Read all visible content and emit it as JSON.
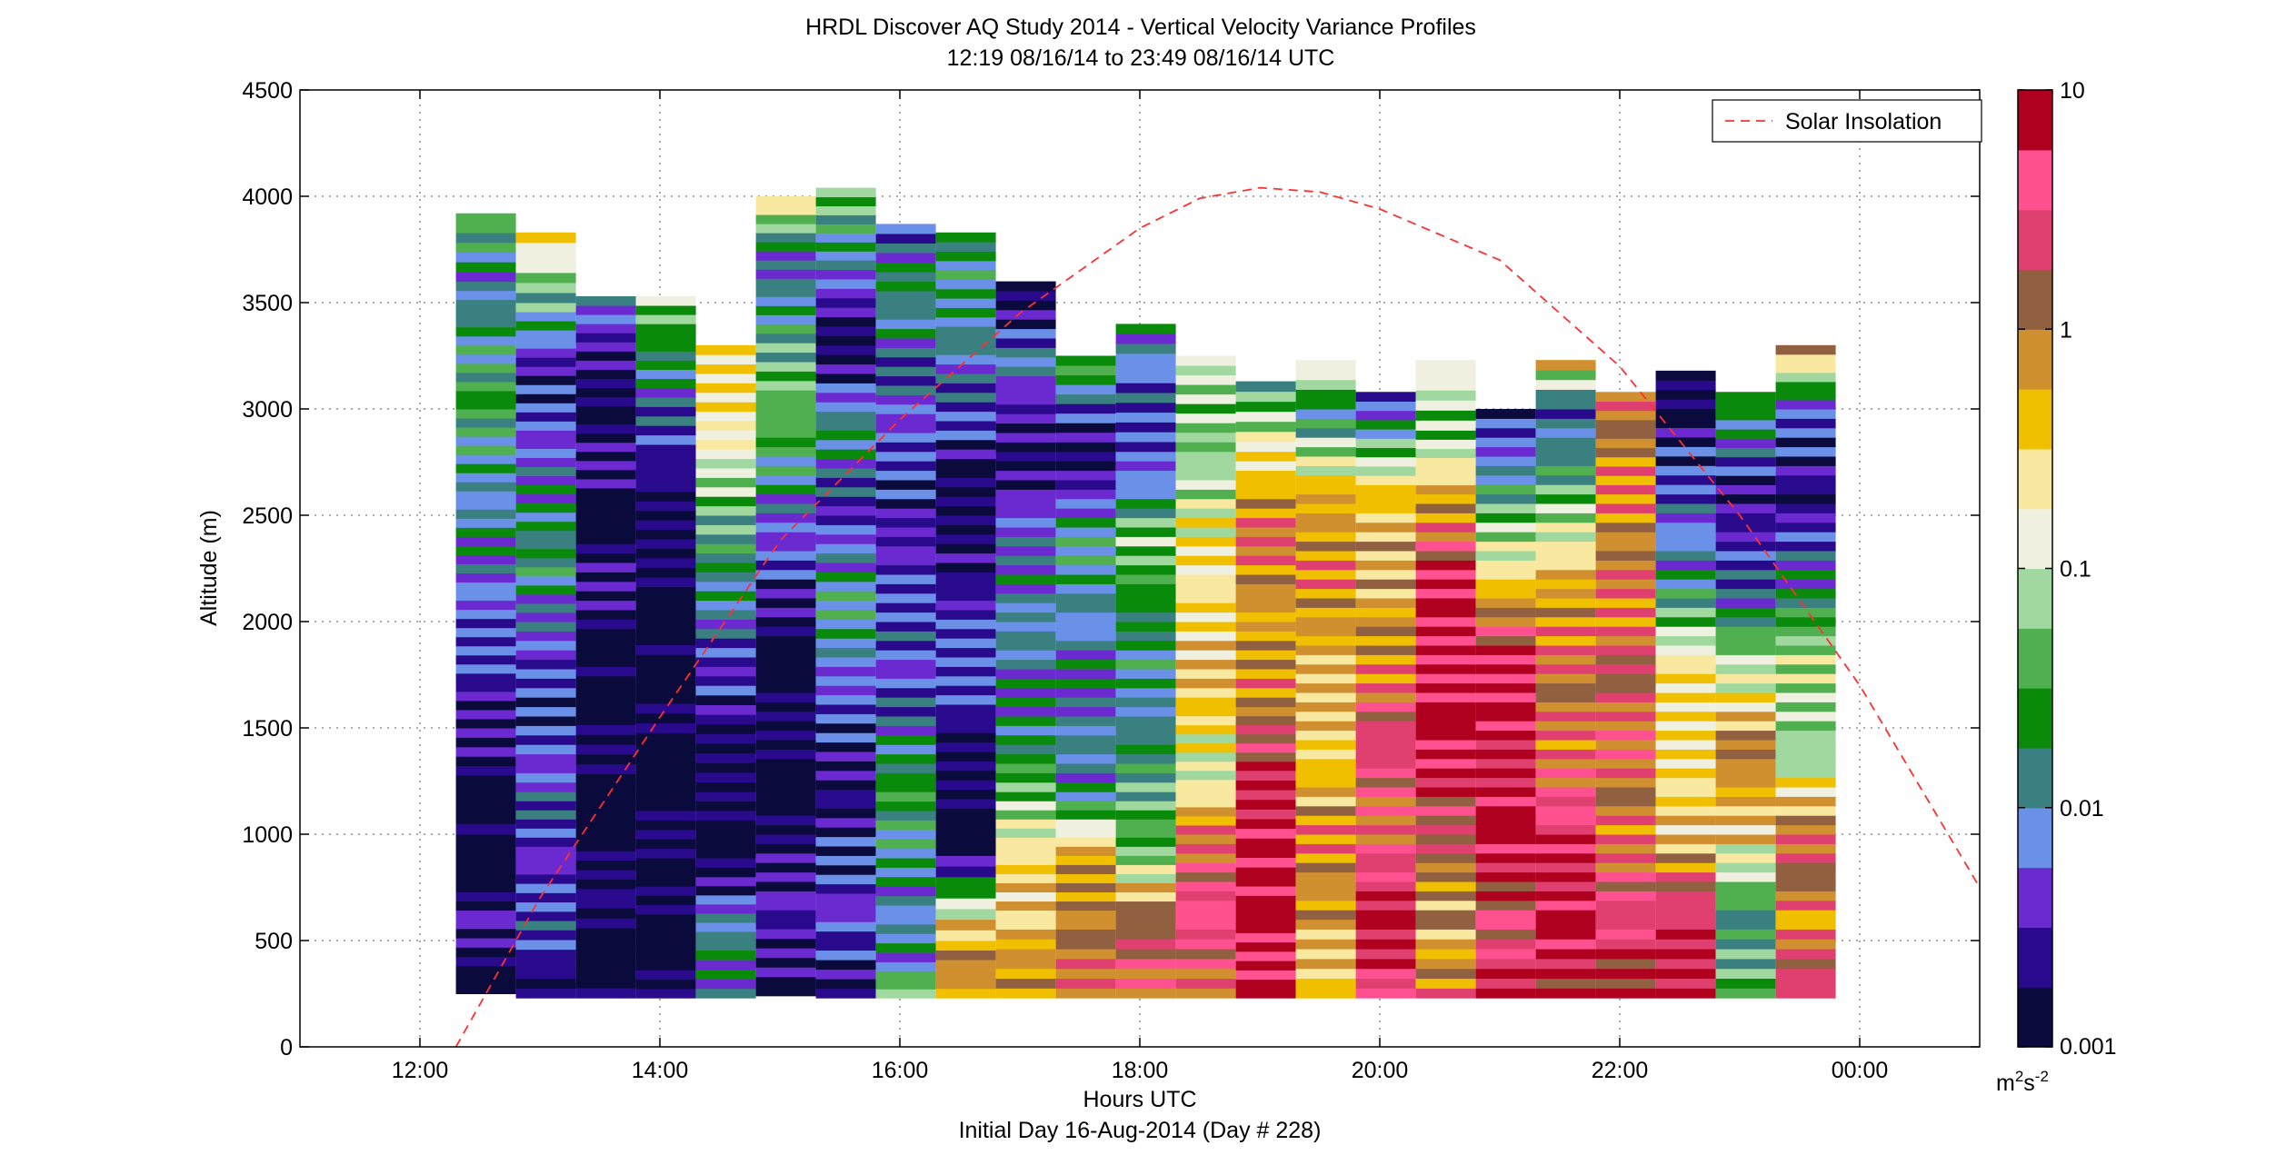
{
  "chart_data": {
    "type": "heatmap",
    "title": "HRDL Discover AQ Study 2014 - Vertical Velocity Variance Profiles",
    "subtitle": "12:19 08/16/14 to 23:49 08/16/14  UTC",
    "xlabel": "Hours UTC",
    "xlabel2": "Initial Day 16-Aug-2014 (Day # 228)",
    "ylabel": "Altitude (m)",
    "xlim": [
      11.0,
      25.0
    ],
    "ylim": [
      0,
      4500
    ],
    "x_ticks": [
      {
        "value": 12,
        "label": "12:00"
      },
      {
        "value": 14,
        "label": "14:00"
      },
      {
        "value": 16,
        "label": "16:00"
      },
      {
        "value": 18,
        "label": "18:00"
      },
      {
        "value": 20,
        "label": "20:00"
      },
      {
        "value": 22,
        "label": "22:00"
      },
      {
        "value": 24,
        "label": "00:00"
      }
    ],
    "y_ticks": [
      {
        "value": 0,
        "label": "0"
      },
      {
        "value": 500,
        "label": "500"
      },
      {
        "value": 1000,
        "label": "1000"
      },
      {
        "value": 1500,
        "label": "1500"
      },
      {
        "value": 2000,
        "label": "2000"
      },
      {
        "value": 2500,
        "label": "2500"
      },
      {
        "value": 3000,
        "label": "3000"
      },
      {
        "value": 3500,
        "label": "3500"
      },
      {
        "value": 4000,
        "label": "4000"
      },
      {
        "value": 4500,
        "label": "4500"
      }
    ],
    "grid": true,
    "colorbar": {
      "scale": "log",
      "range": [
        0.001,
        10
      ],
      "ticks": [
        {
          "value": 0.001,
          "label": "0.001"
        },
        {
          "value": 0.01,
          "label": "0.01"
        },
        {
          "value": 0.1,
          "label": "0.1"
        },
        {
          "value": 1,
          "label": "1"
        },
        {
          "value": 10,
          "label": "10"
        }
      ],
      "units": "m",
      "units_sup": "2",
      "units_s": "s",
      "units_s_sup": "-2",
      "colors": [
        "#0a0a3c",
        "#2a0a8c",
        "#6a2ad0",
        "#6a90e8",
        "#3a8080",
        "#0a8a0a",
        "#50b050",
        "#a0d8a0",
        "#f0f0e0",
        "#f8e8a0",
        "#f0c000",
        "#d09030",
        "#906040",
        "#e04070",
        "#ff5090",
        "#b00020"
      ]
    },
    "series": [
      {
        "name": "Solar Insolation",
        "type": "line",
        "style": "dashed",
        "color": "#ff3030",
        "x": [
          12.3,
          13.0,
          14.0,
          15.0,
          16.0,
          17.0,
          18.0,
          18.5,
          19.0,
          19.5,
          20.0,
          21.0,
          22.0,
          23.0,
          24.0,
          25.0
        ],
        "y": [
          0,
          700,
          1550,
          2380,
          2950,
          3450,
          3850,
          3990,
          4040,
          4020,
          3940,
          3700,
          3200,
          2500,
          1700,
          750
        ]
      }
    ],
    "profiles": [
      {
        "time": 12.55,
        "top": 3920,
        "bottom": 250,
        "layers": [
          [
            250,
            0.001
          ],
          [
            600,
            0.002
          ],
          [
            900,
            0.001
          ],
          [
            1100,
            0.001
          ],
          [
            1500,
            0.002
          ],
          [
            1800,
            0.004
          ],
          [
            2100,
            0.005
          ],
          [
            2400,
            0.012
          ],
          [
            2700,
            0.01
          ],
          [
            3000,
            0.03
          ],
          [
            3300,
            0.02
          ],
          [
            3600,
            0.008
          ],
          [
            3920,
            0.05
          ]
        ]
      },
      {
        "time": 13.05,
        "top": 3830,
        "bottom": 230,
        "layers": [
          [
            230,
            0.001
          ],
          [
            550,
            0.005
          ],
          [
            900,
            0.003
          ],
          [
            1200,
            0.006
          ],
          [
            1600,
            0.003
          ],
          [
            2000,
            0.006
          ],
          [
            2300,
            0.02
          ],
          [
            2600,
            0.01
          ],
          [
            2900,
            0.004
          ],
          [
            3200,
            0.003
          ],
          [
            3500,
            0.03
          ],
          [
            3830,
            0.3
          ]
        ]
      },
      {
        "time": 13.55,
        "top": 3530,
        "bottom": 230,
        "layers": [
          [
            230,
            0.001
          ],
          [
            700,
            0.001
          ],
          [
            1100,
            0.001
          ],
          [
            1700,
            0.001
          ],
          [
            2100,
            0.002
          ],
          [
            2500,
            0.001
          ],
          [
            2800,
            0.003
          ],
          [
            3100,
            0.001
          ],
          [
            3530,
            0.01
          ]
        ]
      },
      {
        "time": 14.05,
        "top": 3530,
        "bottom": 230,
        "layers": [
          [
            230,
            0.001
          ],
          [
            800,
            0.001
          ],
          [
            1200,
            0.001
          ],
          [
            1800,
            0.001
          ],
          [
            2300,
            0.001
          ],
          [
            2700,
            0.002
          ],
          [
            3100,
            0.01
          ],
          [
            3530,
            0.05
          ]
        ]
      },
      {
        "time": 14.55,
        "top": 3300,
        "bottom": 230,
        "layers": [
          [
            230,
            0.005
          ],
          [
            500,
            0.02
          ],
          [
            800,
            0.002
          ],
          [
            1200,
            0.001
          ],
          [
            1700,
            0.003
          ],
          [
            2100,
            0.01
          ],
          [
            2500,
            0.04
          ],
          [
            2900,
            0.2
          ],
          [
            3300,
            0.3
          ]
        ]
      },
      {
        "time": 15.05,
        "top": 4000,
        "bottom": 240,
        "layers": [
          [
            240,
            0.001
          ],
          [
            600,
            0.004
          ],
          [
            1000,
            0.001
          ],
          [
            1400,
            0.001
          ],
          [
            1800,
            0.001
          ],
          [
            2200,
            0.003
          ],
          [
            2600,
            0.01
          ],
          [
            3000,
            0.06
          ],
          [
            3400,
            0.02
          ],
          [
            3700,
            0.006
          ],
          [
            4000,
            0.3
          ]
        ]
      },
      {
        "time": 15.55,
        "top": 4040,
        "bottom": 230,
        "layers": [
          [
            230,
            0.002
          ],
          [
            500,
            0.005
          ],
          [
            900,
            0.003
          ],
          [
            1300,
            0.002
          ],
          [
            1700,
            0.005
          ],
          [
            2100,
            0.02
          ],
          [
            2500,
            0.003
          ],
          [
            2900,
            0.02
          ],
          [
            3300,
            0.001
          ],
          [
            3700,
            0.01
          ],
          [
            4040,
            0.05
          ]
        ]
      },
      {
        "time": 16.05,
        "top": 3870,
        "bottom": 230,
        "layers": [
          [
            230,
            0.1
          ],
          [
            400,
            0.01
          ],
          [
            800,
            0.01
          ],
          [
            1200,
            0.03
          ],
          [
            1600,
            0.005
          ],
          [
            2000,
            0.005
          ],
          [
            2400,
            0.003
          ],
          [
            2800,
            0.004
          ],
          [
            3200,
            0.006
          ],
          [
            3600,
            0.02
          ],
          [
            3870,
            0.003
          ]
        ]
      },
      {
        "time": 16.55,
        "top": 3830,
        "bottom": 230,
        "layers": [
          [
            230,
            0.5
          ],
          [
            500,
            1
          ],
          [
            700,
            0.06
          ],
          [
            900,
            0.001
          ],
          [
            1300,
            0.001
          ],
          [
            1700,
            0.005
          ],
          [
            2100,
            0.003
          ],
          [
            2500,
            0.001
          ],
          [
            2900,
            0.003
          ],
          [
            3300,
            0.01
          ],
          [
            3830,
            0.02
          ]
        ]
      },
      {
        "time": 17.05,
        "top": 3600,
        "bottom": 230,
        "layers": [
          [
            230,
            1
          ],
          [
            600,
            0.4
          ],
          [
            900,
            0.3
          ],
          [
            1200,
            0.05
          ],
          [
            1600,
            0.01
          ],
          [
            2000,
            0.01
          ],
          [
            2400,
            0.008
          ],
          [
            2800,
            0.001
          ],
          [
            3200,
            0.01
          ],
          [
            3600,
            0.001
          ]
        ]
      },
      {
        "time": 17.55,
        "top": 3250,
        "bottom": 230,
        "layers": [
          [
            230,
            1.5
          ],
          [
            600,
            1
          ],
          [
            900,
            0.6
          ],
          [
            1200,
            0.01
          ],
          [
            1600,
            0.01
          ],
          [
            2000,
            0.01
          ],
          [
            2400,
            0.02
          ],
          [
            2800,
            0.001
          ],
          [
            3250,
            0.05
          ]
        ]
      },
      {
        "time": 18.05,
        "top": 3400,
        "bottom": 230,
        "layers": [
          [
            230,
            1.5
          ],
          [
            600,
            2
          ],
          [
            900,
            0.05
          ],
          [
            1200,
            0.03
          ],
          [
            1600,
            0.01
          ],
          [
            2000,
            0.02
          ],
          [
            2400,
            0.05
          ],
          [
            2800,
            0.003
          ],
          [
            3400,
            0.01
          ]
        ]
      },
      {
        "time": 18.55,
        "top": 3250,
        "bottom": 230,
        "layers": [
          [
            230,
            1
          ],
          [
            600,
            5
          ],
          [
            1000,
            1
          ],
          [
            1300,
            0.1
          ],
          [
            1600,
            0.4
          ],
          [
            2000,
            0.3
          ],
          [
            2400,
            0.2
          ],
          [
            2800,
            0.05
          ],
          [
            3250,
            0.1
          ]
        ]
      },
      {
        "time": 19.05,
        "top": 3130,
        "bottom": 230,
        "layers": [
          [
            230,
            10
          ],
          [
            800,
            8
          ],
          [
            1300,
            4
          ],
          [
            1600,
            1
          ],
          [
            2000,
            0.6
          ],
          [
            2400,
            1.5
          ],
          [
            2800,
            0.2
          ],
          [
            3130,
            0.02
          ]
        ]
      },
      {
        "time": 19.55,
        "top": 3230,
        "bottom": 230,
        "layers": [
          [
            230,
            0.3
          ],
          [
            600,
            0.5
          ],
          [
            1000,
            1
          ],
          [
            1400,
            0.3
          ],
          [
            1800,
            0.5
          ],
          [
            2200,
            1
          ],
          [
            2600,
            0.5
          ],
          [
            3000,
            0.01
          ],
          [
            3230,
            0.3
          ]
        ]
      },
      {
        "time": 20.05,
        "top": 3080,
        "bottom": 230,
        "layers": [
          [
            230,
            3
          ],
          [
            600,
            8
          ],
          [
            1000,
            1.5
          ],
          [
            1400,
            3
          ],
          [
            1800,
            1
          ],
          [
            2200,
            0.5
          ],
          [
            2600,
            0.4
          ],
          [
            3080,
            0.002
          ]
        ]
      },
      {
        "time": 20.55,
        "top": 3230,
        "bottom": 230,
        "layers": [
          [
            230,
            1
          ],
          [
            600,
            0.5
          ],
          [
            1000,
            2
          ],
          [
            1400,
            8
          ],
          [
            1800,
            8
          ],
          [
            2200,
            6
          ],
          [
            2600,
            0.5
          ],
          [
            2900,
            0.05
          ],
          [
            3230,
            0.2
          ]
        ]
      },
      {
        "time": 21.05,
        "top": 3000,
        "bottom": 230,
        "layers": [
          [
            230,
            5
          ],
          [
            600,
            2
          ],
          [
            1000,
            8
          ],
          [
            1400,
            5
          ],
          [
            1800,
            8
          ],
          [
            2200,
            0.3
          ],
          [
            2600,
            0.02
          ],
          [
            3000,
            0.002
          ]
        ]
      },
      {
        "time": 21.55,
        "top": 3230,
        "bottom": 230,
        "layers": [
          [
            230,
            3
          ],
          [
            600,
            8
          ],
          [
            1000,
            5
          ],
          [
            1400,
            1
          ],
          [
            1800,
            1.5
          ],
          [
            2200,
            0.5
          ],
          [
            2600,
            0.04
          ],
          [
            3000,
            0.005
          ],
          [
            3230,
            0.5
          ]
        ]
      },
      {
        "time": 22.05,
        "top": 3080,
        "bottom": 230,
        "layers": [
          [
            230,
            4
          ],
          [
            600,
            3
          ],
          [
            1000,
            1
          ],
          [
            1400,
            1.5
          ],
          [
            1800,
            1.5
          ],
          [
            2200,
            1
          ],
          [
            2600,
            0.8
          ],
          [
            3080,
            1.5
          ]
        ]
      },
      {
        "time": 22.55,
        "top": 3180,
        "bottom": 230,
        "layers": [
          [
            230,
            5
          ],
          [
            600,
            4
          ],
          [
            1000,
            0.4
          ],
          [
            1400,
            0.2
          ],
          [
            1800,
            0.3
          ],
          [
            2200,
            0.01
          ],
          [
            2600,
            0.005
          ],
          [
            3180,
            0.001
          ]
        ]
      },
      {
        "time": 23.05,
        "top": 3080,
        "bottom": 230,
        "layers": [
          [
            230,
            0.05
          ],
          [
            600,
            0.02
          ],
          [
            1000,
            0.3
          ],
          [
            1400,
            1
          ],
          [
            1800,
            0.08
          ],
          [
            2200,
            0.005
          ],
          [
            2600,
            0.002
          ],
          [
            3080,
            0.03
          ]
        ]
      },
      {
        "time": 23.55,
        "top": 3300,
        "bottom": 230,
        "layers": [
          [
            230,
            3
          ],
          [
            600,
            1
          ],
          [
            1000,
            1.5
          ],
          [
            1400,
            0.05
          ],
          [
            1800,
            0.1
          ],
          [
            2200,
            0.01
          ],
          [
            2600,
            0.002
          ],
          [
            3000,
            0.005
          ],
          [
            3300,
            1
          ]
        ]
      }
    ]
  },
  "legend": {
    "placement": "top-right",
    "entries": [
      {
        "label": "Solar Insolation",
        "color": "#ff3030",
        "style": "dashed"
      }
    ]
  }
}
